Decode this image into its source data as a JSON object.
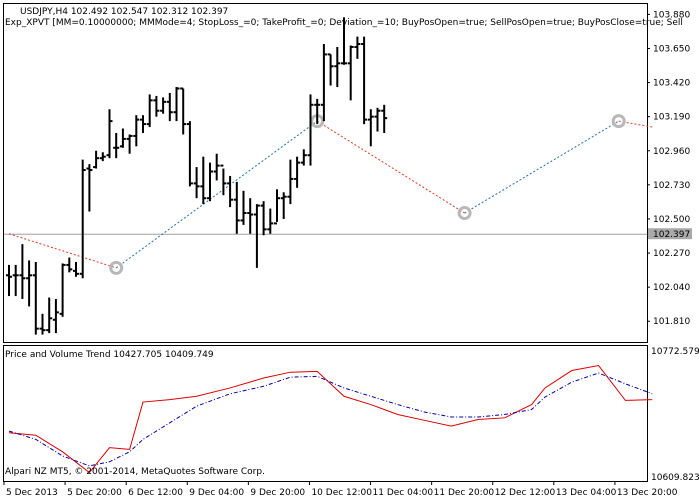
{
  "colors": {
    "background": "#ffffff",
    "bars": "#000000",
    "grid_line": "#a0a0a0",
    "zigzag_up": "#1f6fb2",
    "zigzag_down": "#d9401e",
    "pvt_main": "#dd0000",
    "pvt_signal": "#0000aa",
    "pivot_marker": "#b8b8b8",
    "price_tag_bg": "#a9a9a9",
    "price_tag_text": "#ffffff"
  },
  "header": {
    "symbol_line": "USDJPY,H4  102.492 102.547 102.312 102.397",
    "expert_line": "Exp_XPVT [MM=0.10000000; MMMode=4; StopLoss_=0; TakeProfit_=0; Deviation_=10; BuyPosOpen=true; SellPosOpen=true; BuyPosClose=true; Sell"
  },
  "indicator": {
    "title": "Price and Volume Trend 10427.705 10409.749",
    "copyright": "Alpari NZ MT5, © 2001-2014, MetaQuotes Software Corp.",
    "scale_top": "10772.579",
    "scale_bottom": "10609.823"
  },
  "chart_data": [
    {
      "type": "ohlc",
      "symbol": "USDJPY",
      "timeframe": "H4",
      "current_price": "102.397",
      "ylim": [
        101.67,
        103.95
      ],
      "y_ticks": [
        "103.880",
        "103.650",
        "103.420",
        "103.190",
        "102.960",
        "102.730",
        "102.500",
        "102.270",
        "102.040",
        "101.810"
      ],
      "x_tick_labels": [
        "5 Dec 2013",
        "5 Dec 20:00",
        "6 Dec 12:00",
        "9 Dec 04:00",
        "9 Dec 20:00",
        "10 Dec 12:00",
        "11 Dec 04:00",
        "11 Dec 20:00",
        "12 Dec 12:00",
        "13 Dec 04:00",
        "13 Dec 20:00"
      ],
      "bars": [
        {
          "o": 102.12,
          "h": 102.19,
          "l": 101.98,
          "c": 102.11
        },
        {
          "o": 102.12,
          "h": 102.19,
          "l": 101.98,
          "c": 102.12
        },
        {
          "o": 102.12,
          "h": 102.33,
          "l": 101.96,
          "c": 102.1
        },
        {
          "o": 102.1,
          "h": 102.22,
          "l": 101.91,
          "c": 102.12
        },
        {
          "o": 102.12,
          "h": 102.21,
          "l": 101.72,
          "c": 101.76
        },
        {
          "o": 101.76,
          "h": 101.86,
          "l": 101.72,
          "c": 101.75
        },
        {
          "o": 101.75,
          "h": 101.97,
          "l": 101.73,
          "c": 101.83
        },
        {
          "o": 101.82,
          "h": 101.96,
          "l": 101.73,
          "c": 101.87
        },
        {
          "o": 101.86,
          "h": 102.2,
          "l": 101.84,
          "c": 102.19
        },
        {
          "o": 102.19,
          "h": 102.24,
          "l": 102.14,
          "c": 102.16
        },
        {
          "o": 102.15,
          "h": 102.21,
          "l": 102.11,
          "c": 102.13
        },
        {
          "o": 102.13,
          "h": 102.9,
          "l": 102.1,
          "c": 102.83
        },
        {
          "o": 102.84,
          "h": 102.87,
          "l": 102.55,
          "c": 102.83
        },
        {
          "o": 102.85,
          "h": 102.96,
          "l": 102.84,
          "c": 102.91
        },
        {
          "o": 102.91,
          "h": 102.95,
          "l": 102.89,
          "c": 102.92
        },
        {
          "o": 102.93,
          "h": 103.24,
          "l": 102.91,
          "c": 103.16
        },
        {
          "o": 102.98,
          "h": 103.08,
          "l": 102.91,
          "c": 102.98
        },
        {
          "o": 102.99,
          "h": 103.11,
          "l": 102.98,
          "c": 103.04
        },
        {
          "o": 103.04,
          "h": 103.07,
          "l": 102.94,
          "c": 103.06
        },
        {
          "o": 103.06,
          "h": 103.2,
          "l": 102.99,
          "c": 103.17
        },
        {
          "o": 103.17,
          "h": 103.2,
          "l": 103.08,
          "c": 103.14
        },
        {
          "o": 103.14,
          "h": 103.34,
          "l": 103.12,
          "c": 103.3
        },
        {
          "o": 103.3,
          "h": 103.33,
          "l": 103.19,
          "c": 103.23
        },
        {
          "o": 103.23,
          "h": 103.32,
          "l": 103.21,
          "c": 103.29
        },
        {
          "o": 103.29,
          "h": 103.35,
          "l": 103.16,
          "c": 103.22
        },
        {
          "o": 103.22,
          "h": 103.39,
          "l": 103.16,
          "c": 103.38
        },
        {
          "o": 103.38,
          "h": 103.38,
          "l": 103.07,
          "c": 103.14
        },
        {
          "o": 103.14,
          "h": 103.16,
          "l": 102.72,
          "c": 102.74
        },
        {
          "o": 102.74,
          "h": 102.85,
          "l": 102.64,
          "c": 102.72
        },
        {
          "o": 102.72,
          "h": 102.92,
          "l": 102.6,
          "c": 102.64
        },
        {
          "o": 102.64,
          "h": 102.88,
          "l": 102.62,
          "c": 102.82
        },
        {
          "o": 102.82,
          "h": 102.94,
          "l": 102.76,
          "c": 102.86
        },
        {
          "o": 102.86,
          "h": 102.84,
          "l": 102.66,
          "c": 102.74
        },
        {
          "o": 102.74,
          "h": 102.79,
          "l": 102.58,
          "c": 102.63
        },
        {
          "o": 102.63,
          "h": 102.75,
          "l": 102.4,
          "c": 102.49
        },
        {
          "o": 102.49,
          "h": 102.69,
          "l": 102.46,
          "c": 102.54
        },
        {
          "o": 102.54,
          "h": 102.64,
          "l": 102.4,
          "c": 102.53
        },
        {
          "o": 102.53,
          "h": 102.6,
          "l": 102.17,
          "c": 102.59
        },
        {
          "o": 102.59,
          "h": 102.62,
          "l": 102.39,
          "c": 102.43
        },
        {
          "o": 102.43,
          "h": 102.57,
          "l": 102.4,
          "c": 102.47
        },
        {
          "o": 102.47,
          "h": 102.7,
          "l": 102.48,
          "c": 102.64
        },
        {
          "o": 102.64,
          "h": 102.68,
          "l": 102.5,
          "c": 102.65
        },
        {
          "o": 102.65,
          "h": 102.9,
          "l": 102.6,
          "c": 102.77
        },
        {
          "o": 102.77,
          "h": 102.92,
          "l": 102.71,
          "c": 102.88
        },
        {
          "o": 102.88,
          "h": 102.97,
          "l": 102.86,
          "c": 102.93
        },
        {
          "o": 102.93,
          "h": 103.34,
          "l": 102.86,
          "c": 103.27
        },
        {
          "o": 103.27,
          "h": 103.31,
          "l": 103.14,
          "c": 103.27
        },
        {
          "o": 103.27,
          "h": 103.68,
          "l": 103.16,
          "c": 103.61
        },
        {
          "o": 103.61,
          "h": 103.61,
          "l": 103.4,
          "c": 103.53
        },
        {
          "o": 103.53,
          "h": 103.66,
          "l": 103.39,
          "c": 103.55
        },
        {
          "o": 103.55,
          "h": 103.86,
          "l": 103.54,
          "c": 103.55
        },
        {
          "o": 103.55,
          "h": 103.67,
          "l": 103.3,
          "c": 103.66
        },
        {
          "o": 103.66,
          "h": 103.73,
          "l": 103.58,
          "c": 103.68
        },
        {
          "o": 103.68,
          "h": 103.73,
          "l": 103.14,
          "c": 103.17
        },
        {
          "o": 103.17,
          "h": 103.24,
          "l": 102.99,
          "c": 103.19
        },
        {
          "o": 103.19,
          "h": 103.25,
          "l": 103.09,
          "c": 103.23
        },
        {
          "o": 103.23,
          "h": 103.27,
          "l": 103.08,
          "c": 103.18
        }
      ],
      "zigzag": [
        {
          "bar": 0,
          "price": 102.4
        },
        {
          "bar": 16,
          "price": 102.17
        },
        {
          "bar": 46,
          "price": 103.16
        },
        {
          "bar": 68,
          "price": 102.54
        },
        {
          "bar": 91,
          "price": 103.16
        },
        {
          "bar": 96,
          "price": 103.12
        }
      ],
      "pivot_markers": [
        {
          "bar": 16,
          "price": 102.17
        },
        {
          "bar": 46,
          "price": 103.16
        },
        {
          "bar": 68,
          "price": 102.54
        },
        {
          "bar": 91,
          "price": 103.16
        }
      ]
    },
    {
      "type": "line",
      "name": "Price and Volume Trend",
      "ylim": [
        10609.823,
        10772.579
      ],
      "x": [
        0,
        4,
        8,
        12,
        15,
        18,
        20,
        24,
        28,
        33,
        38,
        42,
        46,
        50,
        54,
        58,
        62,
        66,
        70,
        74,
        78,
        80,
        84,
        88,
        92,
        96
      ],
      "series": [
        {
          "name": "PVT",
          "values": [
            10668,
            10665,
            10645,
            10620,
            10650,
            10648,
            10705,
            10708,
            10712,
            10722,
            10734,
            10741,
            10742,
            10712,
            10702,
            10690,
            10683,
            10676,
            10684,
            10686,
            10702,
            10722,
            10743,
            10749,
            10707,
            10708
          ]
        },
        {
          "name": "Signal",
          "values": [
            10670,
            10660,
            10640,
            10628,
            10633,
            10645,
            10660,
            10680,
            10700,
            10715,
            10724,
            10735,
            10736,
            10722,
            10712,
            10702,
            10693,
            10687,
            10687,
            10690,
            10696,
            10711,
            10729,
            10740,
            10727,
            10715
          ]
        }
      ]
    }
  ]
}
